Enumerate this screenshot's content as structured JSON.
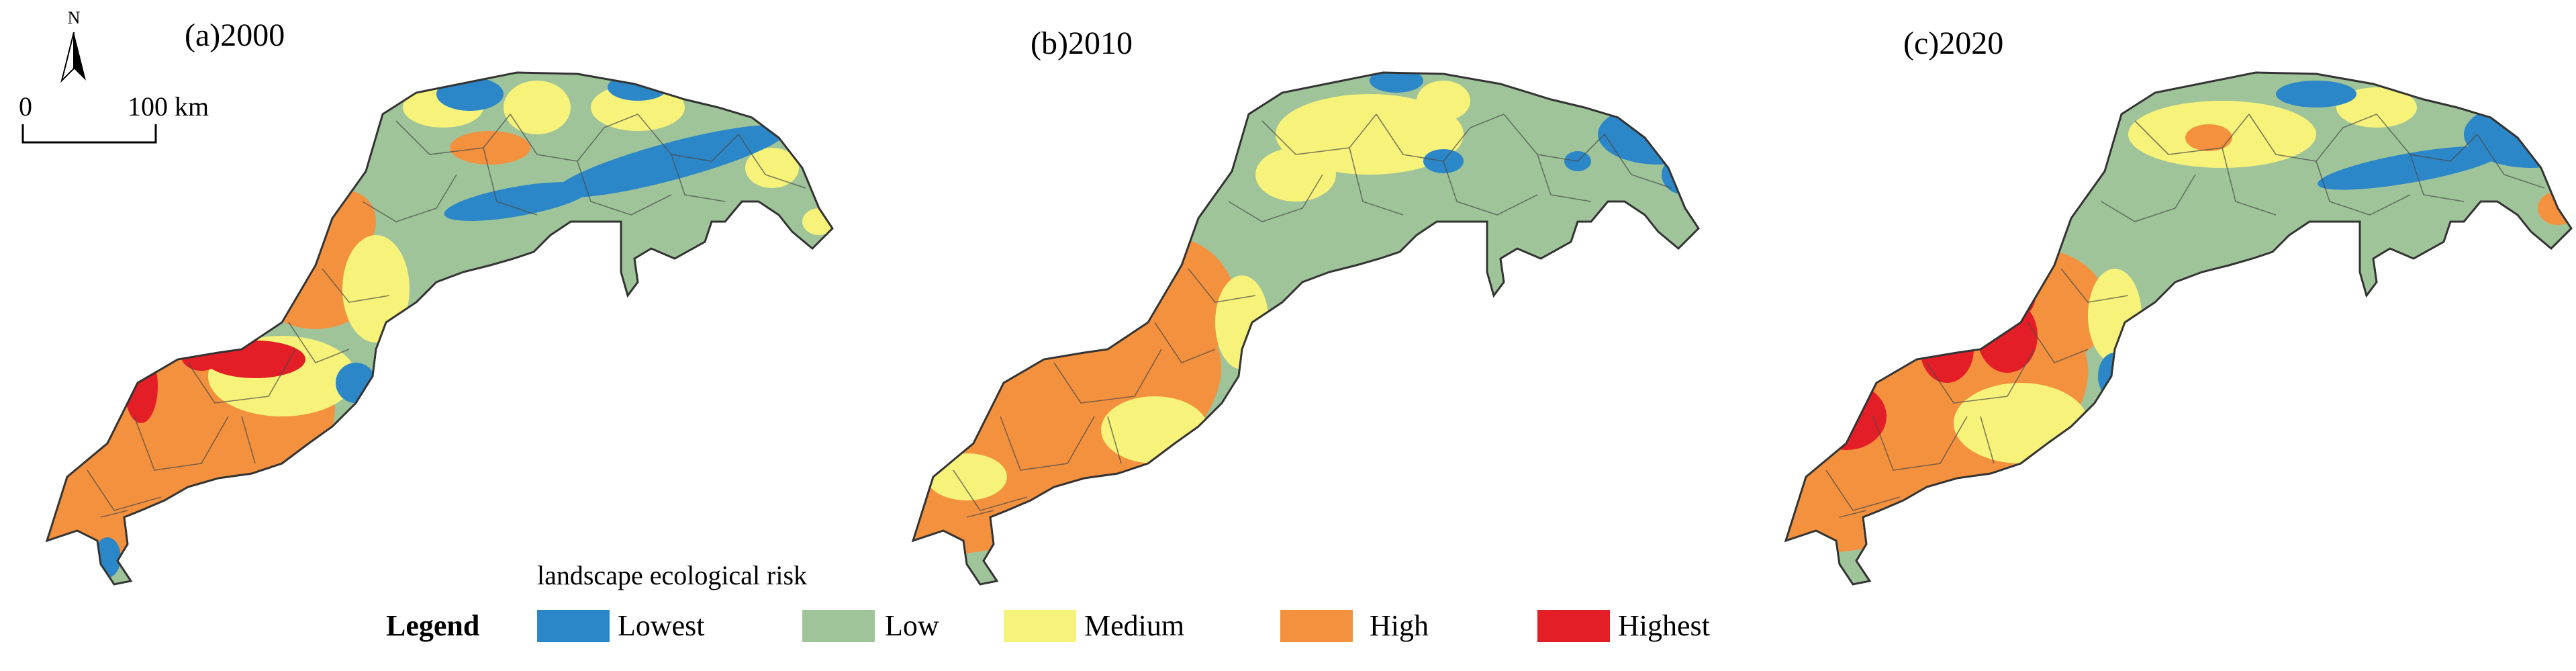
{
  "panels": [
    {
      "label": "(a)2000"
    },
    {
      "label": "(b)2010"
    },
    {
      "label": "(c)2020"
    }
  ],
  "north_arrow": {
    "label": "N"
  },
  "scale_bar": {
    "start": "0",
    "end": "100 km"
  },
  "legend": {
    "title": "landscape ecological risk",
    "heading": "Legend",
    "classes": [
      {
        "label": "Lowest",
        "color": "#2b87c8"
      },
      {
        "label": "Low",
        "color": "#9fc49a"
      },
      {
        "label": "Medium",
        "color": "#f6f27a"
      },
      {
        "label": "High",
        "color": "#f4913e"
      },
      {
        "label": "Highest",
        "color": "#e31e26"
      }
    ]
  },
  "colors": {
    "boundary": "#333333",
    "background": "#ffffff"
  }
}
